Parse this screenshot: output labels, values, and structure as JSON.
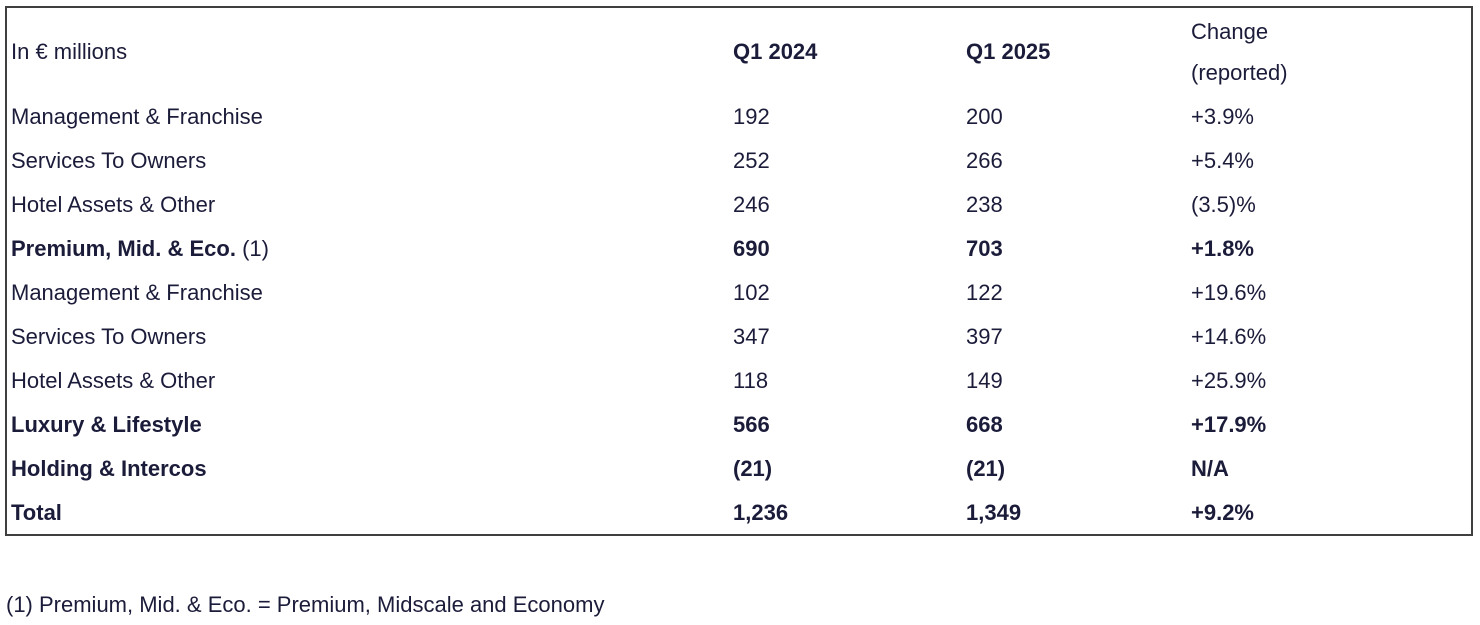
{
  "colors": {
    "text": "#1b1b3a",
    "border": "#3f3f3f",
    "background": "#ffffff"
  },
  "table": {
    "unit_label": "In € millions",
    "col_q1_2024": "Q1 2024",
    "col_q1_2025": "Q1 2025",
    "col_change_line1": "Change",
    "col_change_line2": "(reported)",
    "rows": [
      {
        "label": "Management & Franchise",
        "q1_2024": "192",
        "q1_2025": "200",
        "change": "+3.9%"
      },
      {
        "label": "Services To Owners",
        "q1_2024": "252",
        "q1_2025": "266",
        "change": "+5.4%"
      },
      {
        "label": "Hotel Assets & Other",
        "q1_2024": "246",
        "q1_2025": "238",
        "change": "(3.5)%"
      },
      {
        "label": "Premium, Mid. & Eco.",
        "note_ref": "(1)",
        "q1_2024": "690",
        "q1_2025": "703",
        "change": "+1.8%"
      },
      {
        "label": "Management & Franchise",
        "q1_2024": "102",
        "q1_2025": "122",
        "change": "+19.6%"
      },
      {
        "label": "Services To Owners",
        "q1_2024": "347",
        "q1_2025": "397",
        "change": "+14.6%"
      },
      {
        "label": "Hotel Assets & Other",
        "q1_2024": "118",
        "q1_2025": "149",
        "change": "+25.9%"
      },
      {
        "label": "Luxury & Lifestyle",
        "q1_2024": "566",
        "q1_2025": "668",
        "change": "+17.9%"
      },
      {
        "label": "Holding & Intercos",
        "q1_2024": "(21)",
        "q1_2025": "(21)",
        "change": "N/A"
      },
      {
        "label": "Total",
        "q1_2024": "1,236",
        "q1_2025": "1,349",
        "change": "+9.2%"
      }
    ]
  },
  "footnote": "(1) Premium, Mid. & Eco. = Premium, Midscale and Economy"
}
